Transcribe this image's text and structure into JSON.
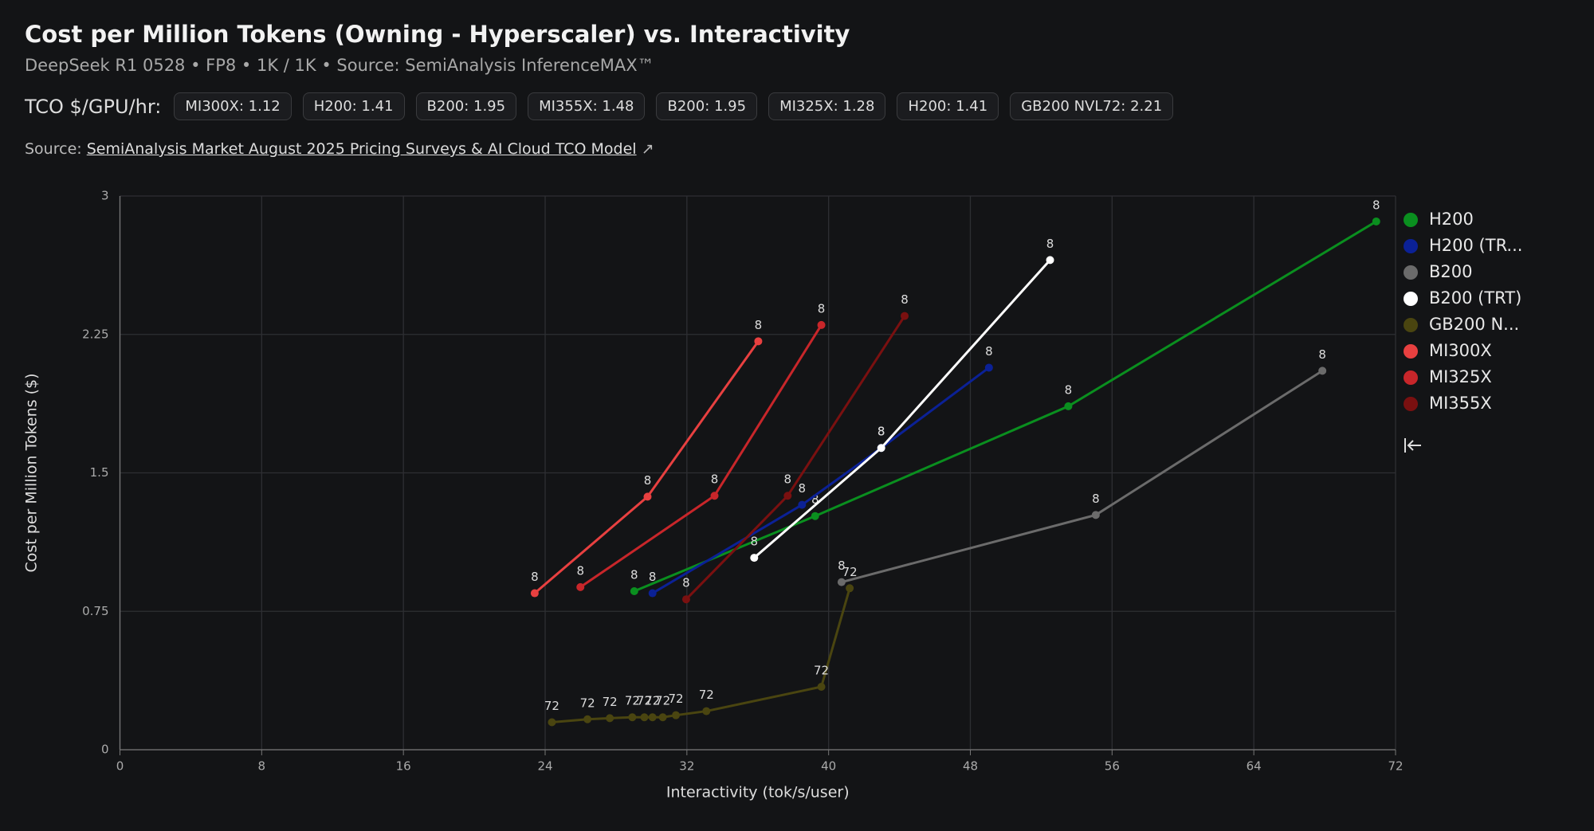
{
  "header": {
    "title": "Cost per Million Tokens (Owning - Hyperscaler) vs. Interactivity",
    "subtitle": "DeepSeek R1 0528 • FP8 • 1K / 1K • Source: SemiAnalysis InferenceMAX™",
    "tco_label": "TCO $/GPU/hr:",
    "tco_chips": [
      "MI300X: 1.12",
      "H200: 1.41",
      "B200: 1.95",
      "MI355X: 1.48",
      "B200: 1.95",
      "MI325X: 1.28",
      "H200: 1.41",
      "GB200 NVL72: 2.21"
    ],
    "source_prefix": "Source:",
    "source_link": "SemiAnalysis Market August 2025 Pricing Surveys & AI Cloud TCO Model"
  },
  "chart_data": {
    "type": "line",
    "x_label": "Interactivity (tok/s/user)",
    "y_label": "Cost per Million Tokens ($)",
    "xlim": [
      0,
      72
    ],
    "xticks": [
      0,
      8,
      16,
      24,
      32,
      40,
      48,
      56,
      64,
      72
    ],
    "ylim": [
      0,
      3
    ],
    "yticks": [
      0,
      0.75,
      1.5,
      2.25,
      3
    ],
    "grid": true,
    "legend": "right",
    "series": [
      {
        "name": "H200",
        "color": "#0a8f1f",
        "x": [
          29.03,
          39.24,
          53.53,
          70.91
        ],
        "values": [
          0.859,
          1.266,
          1.861,
          2.862
        ],
        "point_labels": [
          "8",
          "8",
          "8",
          "8"
        ]
      },
      {
        "name": "H200 (TR...",
        "color": "#0b2196",
        "x": [
          30.06,
          38.5,
          42.97,
          49.05
        ],
        "values": [
          0.848,
          1.327,
          1.635,
          2.07
        ],
        "point_labels": [
          "8",
          "8",
          "8",
          "8"
        ]
      },
      {
        "name": "B200",
        "color": "#6b6b6b",
        "x": [
          40.73,
          55.08,
          67.87
        ],
        "values": [
          0.908,
          1.272,
          2.053
        ],
        "point_labels": [
          "8",
          "8",
          "8"
        ]
      },
      {
        "name": "B200 (TRT)",
        "color": "#ffffff",
        "x": [
          35.8,
          42.97,
          52.5
        ],
        "values": [
          1.04,
          1.635,
          2.653
        ],
        "point_labels": [
          "8",
          "8",
          "8"
        ]
      },
      {
        "name": "GB200 N...",
        "color": "#4a4510",
        "x": [
          24.38,
          26.39,
          27.65,
          28.92,
          29.6,
          30.06,
          30.64,
          31.38,
          33.1,
          39.59,
          41.19
        ],
        "values": [
          0.149,
          0.165,
          0.171,
          0.176,
          0.176,
          0.176,
          0.176,
          0.187,
          0.209,
          0.341,
          0.875
        ],
        "point_labels": [
          "72",
          "72",
          "72",
          "72",
          "72",
          "72",
          "72",
          "72",
          "72",
          "72",
          "72"
        ]
      },
      {
        "name": "MI300X",
        "color": "#e84040",
        "x": [
          23.41,
          29.78,
          36.03
        ],
        "values": [
          0.848,
          1.371,
          2.213
        ],
        "point_labels": [
          "8",
          "8",
          "8"
        ]
      },
      {
        "name": "MI325X",
        "color": "#c8262a",
        "x": [
          25.99,
          33.56,
          39.59
        ],
        "values": [
          0.881,
          1.376,
          2.301
        ],
        "point_labels": [
          "8",
          "8",
          "8"
        ]
      },
      {
        "name": "MI355X",
        "color": "#7a1010",
        "x": [
          31.96,
          37.69,
          44.29
        ],
        "values": [
          0.815,
          1.376,
          2.35
        ],
        "point_labels": [
          "8",
          "8",
          "8"
        ]
      }
    ]
  }
}
